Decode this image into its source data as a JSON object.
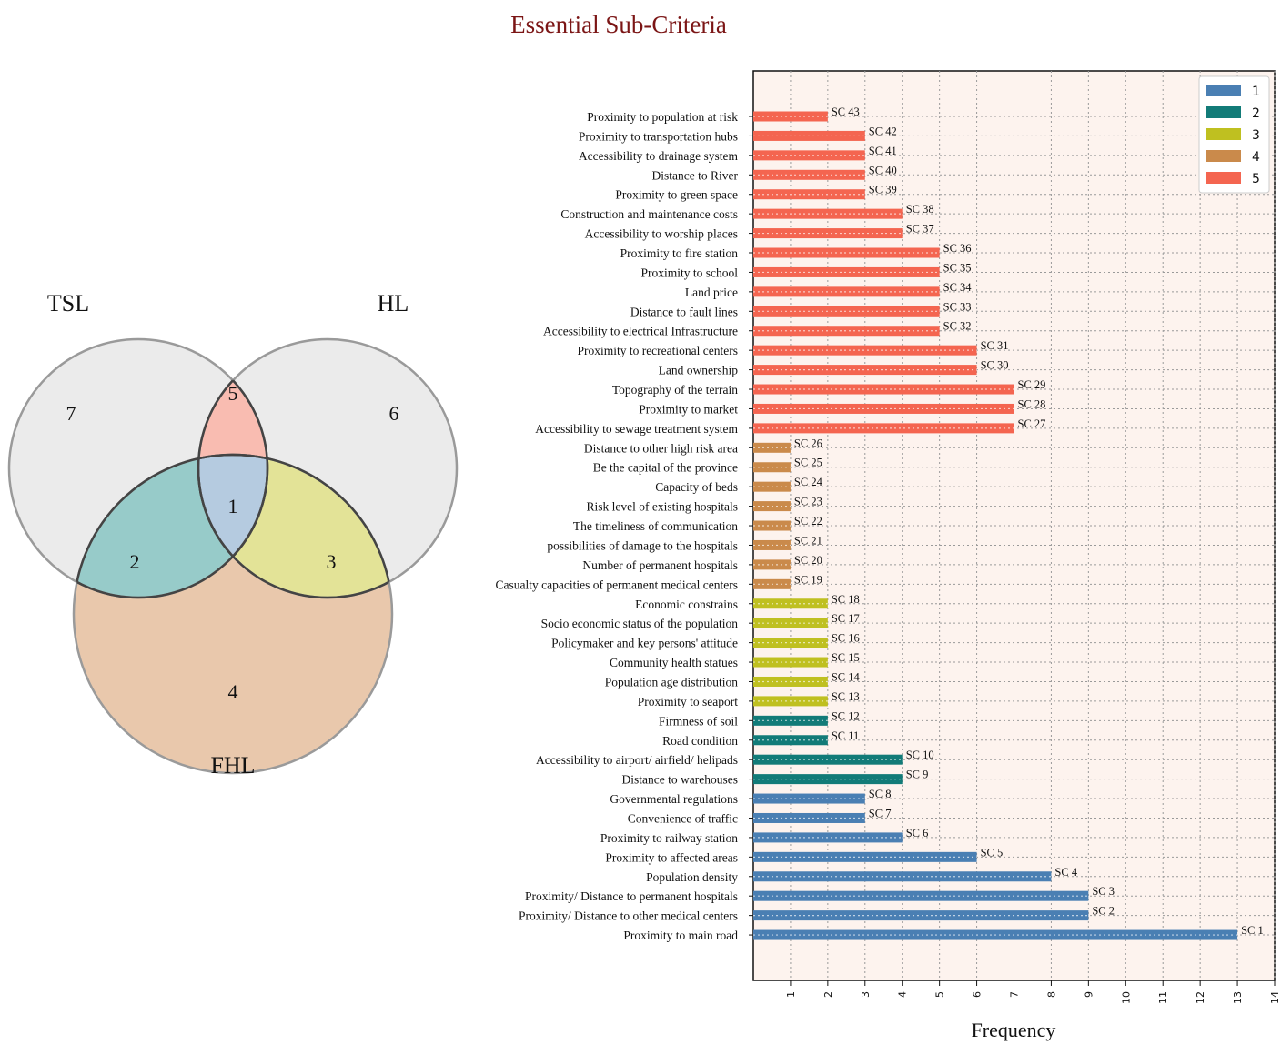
{
  "title": "Essential Sub-Criteria",
  "venn": {
    "sets": [
      "TSL",
      "HL",
      "FHL"
    ],
    "regions": [
      {
        "id": "tsl-only",
        "value": "7"
      },
      {
        "id": "hl-only",
        "value": "6"
      },
      {
        "id": "fhl-only",
        "value": "4"
      },
      {
        "id": "tsl-hl",
        "value": "5"
      },
      {
        "id": "tsl-fhl",
        "value": "2"
      },
      {
        "id": "hl-fhl",
        "value": "3"
      },
      {
        "id": "all",
        "value": "1"
      }
    ],
    "colors": {
      "tsl-hl": "#f9bcb1",
      "tsl-fhl": "#97cbc9",
      "hl-fhl": "#e3e397",
      "fhl-only": "#e9c8ac",
      "all": "#b5cbe0",
      "outer": "#ebebeb"
    }
  },
  "chart_data": {
    "type": "bar",
    "orientation": "horizontal",
    "xlabel": "Frequency",
    "xlim": [
      0,
      14
    ],
    "xticks": [
      1,
      2,
      3,
      4,
      5,
      6,
      7,
      8,
      9,
      10,
      11,
      12,
      13,
      14
    ],
    "grid": true,
    "legend_position": "top-right",
    "legend": [
      {
        "label": "1",
        "color": "#4a7fb3"
      },
      {
        "label": "2",
        "color": "#127b78"
      },
      {
        "label": "3",
        "color": "#bfc020"
      },
      {
        "label": "4",
        "color": "#ca8a4b"
      },
      {
        "label": "5",
        "color": "#f46550"
      }
    ],
    "bars": [
      {
        "label": "Proximity to population at risk",
        "code": "SC 43",
        "value": 2,
        "group": 5
      },
      {
        "label": "Proximity to transportation hubs",
        "code": "SC 42",
        "value": 3,
        "group": 5
      },
      {
        "label": "Accessibility to drainage system",
        "code": "SC 41",
        "value": 3,
        "group": 5
      },
      {
        "label": "Distance to River",
        "code": "SC 40",
        "value": 3,
        "group": 5
      },
      {
        "label": "Proximity to green space",
        "code": "SC 39",
        "value": 3,
        "group": 5
      },
      {
        "label": "Construction and maintenance costs",
        "code": "SC 38",
        "value": 4,
        "group": 5
      },
      {
        "label": "Accessibility to worship places",
        "code": "SC 37",
        "value": 4,
        "group": 5
      },
      {
        "label": "Proximity to fire station",
        "code": "SC 36",
        "value": 5,
        "group": 5
      },
      {
        "label": "Proximity to school",
        "code": "SC 35",
        "value": 5,
        "group": 5
      },
      {
        "label": "Land price",
        "code": "SC 34",
        "value": 5,
        "group": 5
      },
      {
        "label": "Distance to fault lines",
        "code": "SC 33",
        "value": 5,
        "group": 5
      },
      {
        "label": "Accessibility to electrical Infrastructure",
        "code": "SC 32",
        "value": 5,
        "group": 5
      },
      {
        "label": "Proximity to recreational centers",
        "code": "SC 31",
        "value": 6,
        "group": 5
      },
      {
        "label": "Land ownership",
        "code": "SC 30",
        "value": 6,
        "group": 5
      },
      {
        "label": "Topography of the terrain",
        "code": "SC 29",
        "value": 7,
        "group": 5
      },
      {
        "label": "Proximity to market",
        "code": "SC 28",
        "value": 7,
        "group": 5
      },
      {
        "label": "Accessibility to sewage treatment system",
        "code": "SC 27",
        "value": 7,
        "group": 5
      },
      {
        "label": "Distance to other high risk area",
        "code": "SC 26",
        "value": 1,
        "group": 4
      },
      {
        "label": "Be the capital of the province",
        "code": "SC 25",
        "value": 1,
        "group": 4
      },
      {
        "label": "Capacity of beds",
        "code": "SC 24",
        "value": 1,
        "group": 4
      },
      {
        "label": "Risk level of existing hospitals",
        "code": "SC 23",
        "value": 1,
        "group": 4
      },
      {
        "label": "The timeliness of communication",
        "code": "SC 22",
        "value": 1,
        "group": 4
      },
      {
        "label": "possibilities of damage to the hospitals",
        "code": "SC 21",
        "value": 1,
        "group": 4
      },
      {
        "label": "Number of permanent hospitals",
        "code": "SC 20",
        "value": 1,
        "group": 4
      },
      {
        "label": "Casualty capacities of  permanent medical centers",
        "code": "SC 19",
        "value": 1,
        "group": 4
      },
      {
        "label": "Economic constrains",
        "code": "SC 18",
        "value": 2,
        "group": 3
      },
      {
        "label": "Socio economic status of the population",
        "code": "SC 17",
        "value": 2,
        "group": 3
      },
      {
        "label": "Policymaker and key persons' attitude",
        "code": "SC 16",
        "value": 2,
        "group": 3
      },
      {
        "label": "Community health statues",
        "code": "SC 15",
        "value": 2,
        "group": 3
      },
      {
        "label": "Population age distribution",
        "code": "SC 14",
        "value": 2,
        "group": 3
      },
      {
        "label": "Proximity to seaport",
        "code": "SC 13",
        "value": 2,
        "group": 3
      },
      {
        "label": "Firmness of soil",
        "code": "SC 12",
        "value": 2,
        "group": 2
      },
      {
        "label": "Road condition",
        "code": "SC 11",
        "value": 2,
        "group": 2
      },
      {
        "label": "Accessibility to airport/ airfield/ helipads",
        "code": "SC 10",
        "value": 4,
        "group": 2
      },
      {
        "label": "Distance to warehouses",
        "code": "SC 9",
        "value": 4,
        "group": 2
      },
      {
        "label": "Governmental regulations",
        "code": "SC 8",
        "value": 3,
        "group": 1
      },
      {
        "label": "Convenience of traffic",
        "code": "SC 7",
        "value": 3,
        "group": 1
      },
      {
        "label": "Proximity to railway station",
        "code": "SC 6",
        "value": 4,
        "group": 1
      },
      {
        "label": "Proximity to affected areas",
        "code": "SC 5",
        "value": 6,
        "group": 1
      },
      {
        "label": "Population density",
        "code": "SC 4",
        "value": 8,
        "group": 1
      },
      {
        "label": "Proximity/ Distance to permanent  hospitals",
        "code": "SC 3",
        "value": 9,
        "group": 1
      },
      {
        "label": "Proximity/ Distance  to other medical centers",
        "code": "SC 2",
        "value": 9,
        "group": 1
      },
      {
        "label": "Proximity to main road",
        "code": "SC 1",
        "value": 13,
        "group": 1
      }
    ]
  }
}
